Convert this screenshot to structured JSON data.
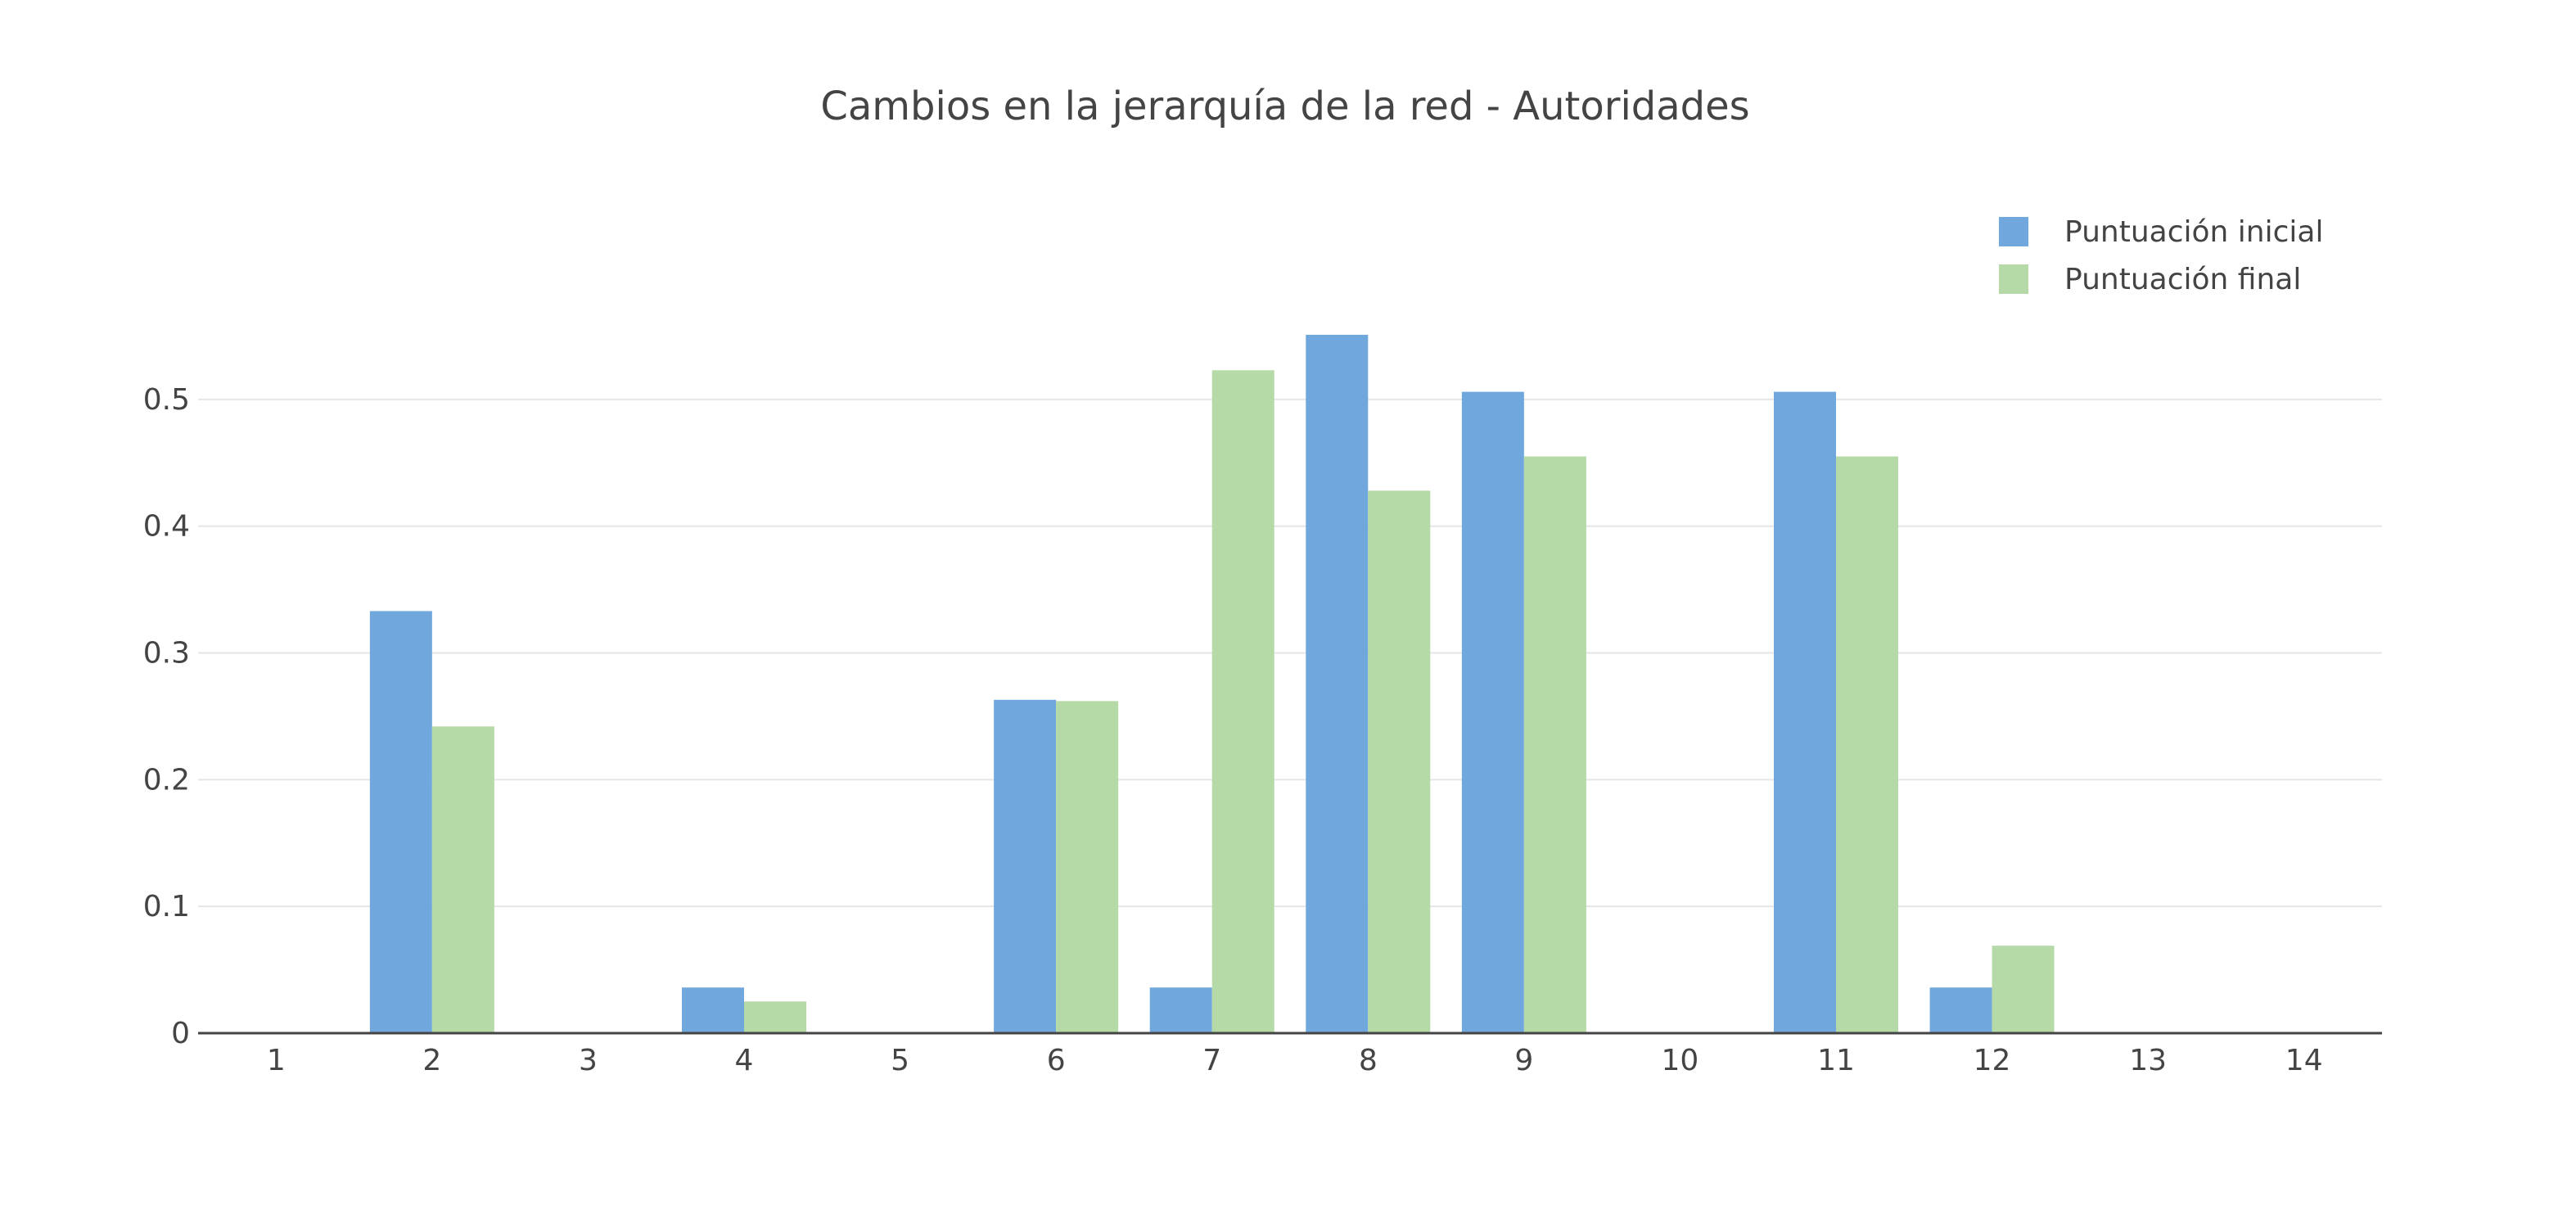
{
  "chart_data": {
    "type": "bar",
    "title": "Cambios en la jerarquía de la red - Autoridades",
    "xlabel": "",
    "ylabel": "",
    "categories": [
      "1",
      "2",
      "3",
      "4",
      "5",
      "6",
      "7",
      "8",
      "9",
      "10",
      "11",
      "12",
      "13",
      "14"
    ],
    "series": [
      {
        "name": "Puntuación inicial",
        "color": "#70a7dc",
        "values": [
          0,
          0.333,
          0,
          0.036,
          0,
          0.263,
          0.036,
          0.551,
          0.506,
          0,
          0.506,
          0.036,
          0,
          0
        ]
      },
      {
        "name": "Puntuación final",
        "color": "#b6d9a8",
        "values": [
          0,
          0.242,
          0,
          0.025,
          0,
          0.262,
          0.523,
          0.428,
          0.455,
          0,
          0.455,
          0.069,
          0,
          0
        ]
      }
    ],
    "ylim": [
      0,
      0.56
    ],
    "yticks": [
      0,
      0.1,
      0.2,
      0.3,
      0.4,
      0.5
    ],
    "ytick_labels": [
      "0",
      "0.1",
      "0.2",
      "0.3",
      "0.4",
      "0.5"
    ],
    "grid": true,
    "legend_position": "top-right"
  }
}
